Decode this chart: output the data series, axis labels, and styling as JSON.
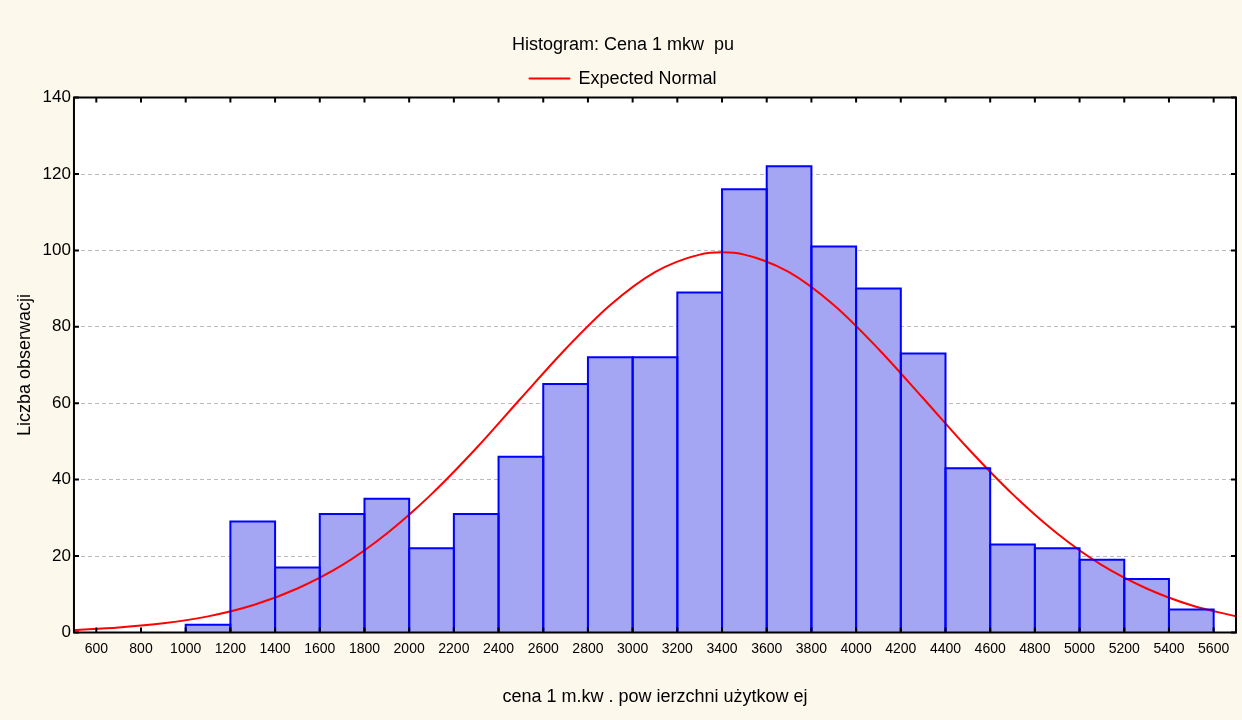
{
  "chart_data": {
    "type": "histogram",
    "title": "Histogram: Cena 1 mkw  pu",
    "xlabel": "cena 1 m.kw . pow ierzchni użytkow ej",
    "ylabel": "Liczba obserwacji",
    "bins": [
      600,
      800,
      1000,
      1200,
      1400,
      1600,
      1800,
      2000,
      2200,
      2400,
      2600,
      2800,
      3000,
      3200,
      3400,
      3600,
      3800,
      4000,
      4200,
      4400,
      4600,
      4800,
      5000,
      5200,
      5400,
      5600
    ],
    "values": [
      0,
      0,
      2,
      29,
      17,
      31,
      35,
      22,
      31,
      46,
      65,
      72,
      72,
      89,
      116,
      122,
      101,
      90,
      73,
      43,
      23,
      22,
      19,
      14,
      6
    ],
    "color": "#a4a6f4",
    "series": [
      {
        "type": "line",
        "name": "Expected Normal",
        "color": "#ff0000",
        "x": [
          500,
          700,
          900,
          1100,
          1300,
          1500,
          1700,
          1900,
          2100,
          2300,
          2500,
          2700,
          2900,
          3100,
          3300,
          3400,
          3500,
          3700,
          3900,
          4100,
          4300,
          4500,
          4700,
          4900,
          5100,
          5300,
          5500,
          5700
        ],
        "values": [
          0.6,
          1.3,
          2.4,
          4.2,
          7.1,
          11.5,
          17.6,
          25.9,
          36.2,
          48.2,
          61.3,
          74.2,
          85.7,
          94.3,
          98.9,
          99.5,
          98.9,
          94.3,
          85.7,
          74.2,
          61.3,
          48.2,
          36.2,
          25.9,
          17.6,
          11.5,
          7.1,
          4.2
        ]
      }
    ],
    "xlim": [
      500,
      5700
    ],
    "xticks": [
      600,
      800,
      1000,
      1200,
      1400,
      1600,
      1800,
      2000,
      2200,
      2400,
      2600,
      2800,
      3000,
      3200,
      3400,
      3600,
      3800,
      4000,
      4200,
      4400,
      4600,
      4800,
      5000,
      5200,
      5400,
      5600
    ],
    "ylim": [
      0,
      140
    ],
    "yticks": [
      0,
      20,
      40,
      60,
      80,
      100,
      120,
      140
    ],
    "grid": "y",
    "legend": "top"
  }
}
